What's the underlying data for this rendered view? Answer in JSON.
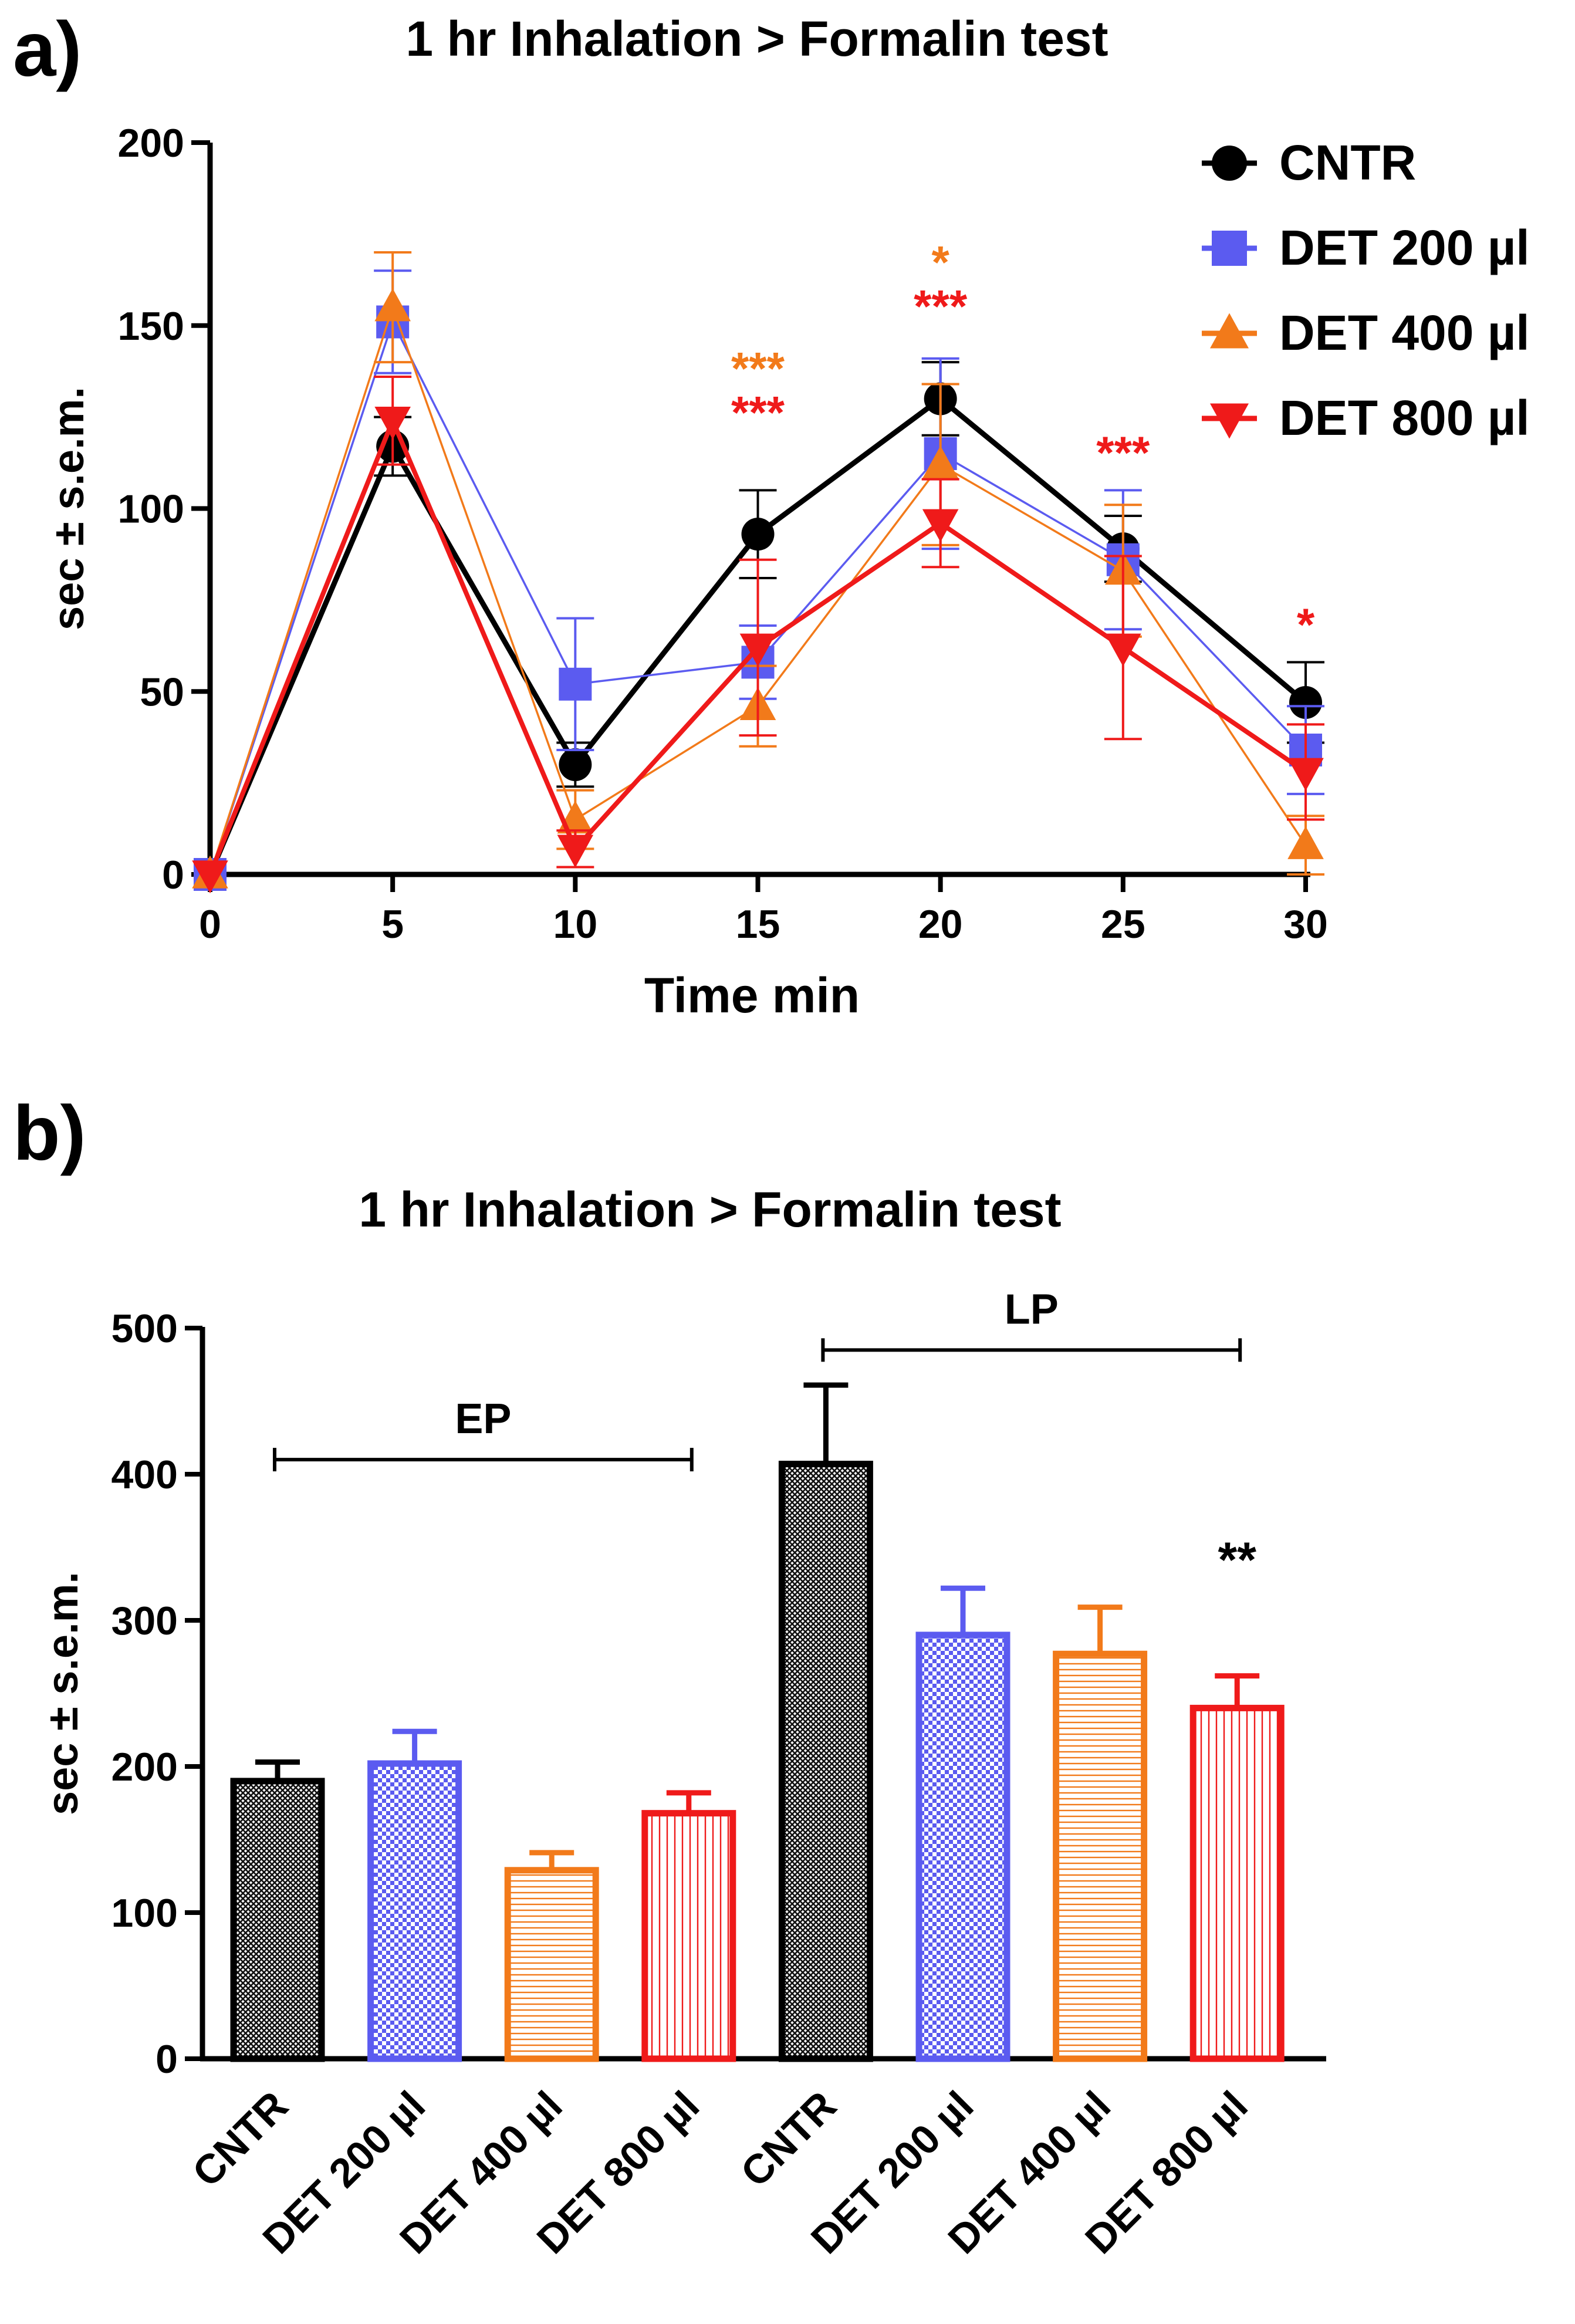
{
  "chart_data": [
    {
      "panel": "a)",
      "type": "line",
      "title": "1 hr Inhalation > Formalin test",
      "xlabel": "Time min",
      "ylabel": "sec ± s.e.m.",
      "xlim": [
        0,
        30
      ],
      "ylim": [
        0,
        200
      ],
      "xticks": [
        0,
        5,
        10,
        15,
        20,
        25,
        30
      ],
      "yticks": [
        0,
        50,
        100,
        150,
        200
      ],
      "legend_position": "top-right",
      "x": [
        0,
        5,
        10,
        15,
        20,
        25,
        30
      ],
      "series": [
        {
          "name": "CNTR",
          "color": "#000000",
          "marker": "circle",
          "values": [
            0,
            117,
            30,
            93,
            130,
            89,
            47
          ],
          "sem": [
            0,
            8,
            6,
            12,
            10,
            9,
            11
          ]
        },
        {
          "name": "DET 200 µl",
          "color": "#5b5bf0",
          "marker": "square",
          "values": [
            0,
            151,
            52,
            58,
            115,
            86,
            34
          ],
          "sem": [
            0,
            14,
            18,
            10,
            26,
            19,
            12
          ]
        },
        {
          "name": "DET 400 µl",
          "color": "#f27a1a",
          "marker": "triangle-up",
          "values": [
            0,
            155,
            15,
            46,
            112,
            83,
            8
          ],
          "sem": [
            0,
            15,
            8,
            11,
            22,
            18,
            8
          ]
        },
        {
          "name": "DET 800 µl",
          "color": "#ef1a1a",
          "marker": "triangle-down",
          "values": [
            0,
            124,
            7,
            62,
            96,
            62,
            28
          ],
          "sem": [
            0,
            12,
            5,
            24,
            12,
            25,
            13
          ]
        }
      ],
      "annotations": [
        {
          "x": 15,
          "text": "***",
          "color": "#f27a1a",
          "y": 134
        },
        {
          "x": 15,
          "text": "***",
          "color": "#ef1a1a",
          "y": 122
        },
        {
          "x": 20,
          "text": "*",
          "color": "#f27a1a",
          "y": 163
        },
        {
          "x": 20,
          "text": "***",
          "color": "#ef1a1a",
          "y": 151
        },
        {
          "x": 25,
          "text": "***",
          "color": "#ef1a1a",
          "y": 111
        },
        {
          "x": 30,
          "text": "*",
          "color": "#ef1a1a",
          "y": 64
        }
      ]
    },
    {
      "panel": "b)",
      "type": "bar",
      "title": "1 hr Inhalation > Formalin test",
      "xlabel": "",
      "ylabel": "sec ± s.e.m.",
      "ylim": [
        0,
        500
      ],
      "yticks": [
        0,
        100,
        200,
        300,
        400,
        500
      ],
      "categories": [
        "CNTR",
        "DET 200 µl",
        "DET 400 µl",
        "DET 800 µl",
        "CNTR",
        "DET 200 µl",
        "DET 400 µl",
        "DET 800 µl"
      ],
      "values": [
        190,
        202,
        129,
        168,
        407,
        290,
        277,
        240
      ],
      "sem": [
        13,
        22,
        12,
        14,
        54,
        32,
        32,
        22
      ],
      "colors": [
        "#000000",
        "#5b5bf0",
        "#f27a1a",
        "#ef1a1a",
        "#000000",
        "#5b5bf0",
        "#f27a1a",
        "#ef1a1a"
      ],
      "patterns": [
        "crosshatch",
        "checker",
        "horizontal",
        "vertical",
        "crosshatch",
        "checker",
        "horizontal",
        "vertical"
      ],
      "groups": [
        {
          "label": "EP",
          "from": 0,
          "to": 3,
          "y": 410
        },
        {
          "label": "LP",
          "from": 4,
          "to": 7,
          "y": 485
        }
      ],
      "annotations": [
        {
          "bar": 7,
          "text": "**",
          "y": 330
        }
      ]
    }
  ]
}
